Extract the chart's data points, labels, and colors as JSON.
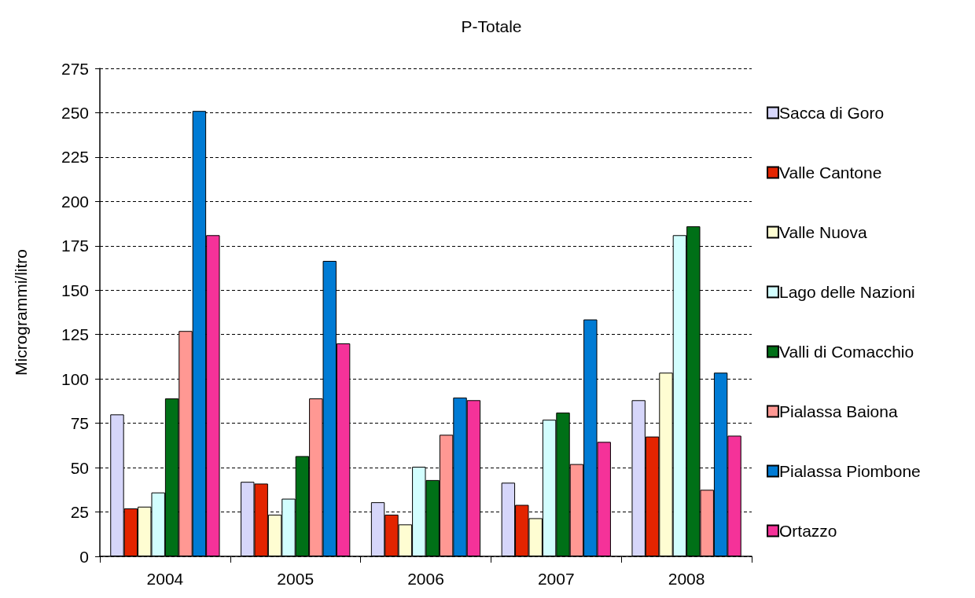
{
  "chart_data": {
    "type": "bar",
    "title": "P-Totale",
    "ylabel": "Microgrammi/litro",
    "categories": [
      "2004",
      "2005",
      "2006",
      "2007",
      "2008"
    ],
    "series": [
      {
        "name": "Sacca di Goro",
        "color": "#d6d6fa",
        "values": [
          80,
          42,
          30.5,
          41.5,
          88
        ]
      },
      {
        "name": "Valle Cantone",
        "color": "#e32400",
        "values": [
          27,
          41,
          23.5,
          29,
          67.5
        ]
      },
      {
        "name": "Valle Nuova",
        "color": "#fefdd2",
        "values": [
          28,
          23.5,
          18,
          21.5,
          103.5
        ]
      },
      {
        "name": "Lago delle Nazioni",
        "color": "#d2fefe",
        "values": [
          36,
          32.5,
          50.5,
          77,
          181
        ]
      },
      {
        "name": "Valli di Comacchio",
        "color": "#007017",
        "values": [
          89,
          56.5,
          43,
          81,
          186
        ]
      },
      {
        "name": "Pialassa Baiona",
        "color": "#ff9893",
        "values": [
          127,
          89,
          68.5,
          52,
          37.5
        ]
      },
      {
        "name": "Pialassa Piombone",
        "color": "#007bd4",
        "values": [
          251,
          166.5,
          89.5,
          133.5,
          103.5
        ]
      },
      {
        "name": "Ortazzo",
        "color": "#f53299",
        "values": [
          181,
          120,
          88,
          64.5,
          68
        ]
      }
    ],
    "ylim": [
      0,
      275
    ],
    "yticks": [
      0,
      25,
      50,
      75,
      100,
      125,
      150,
      175,
      200,
      225,
      250,
      275
    ],
    "grid": "y",
    "legend": "right"
  }
}
